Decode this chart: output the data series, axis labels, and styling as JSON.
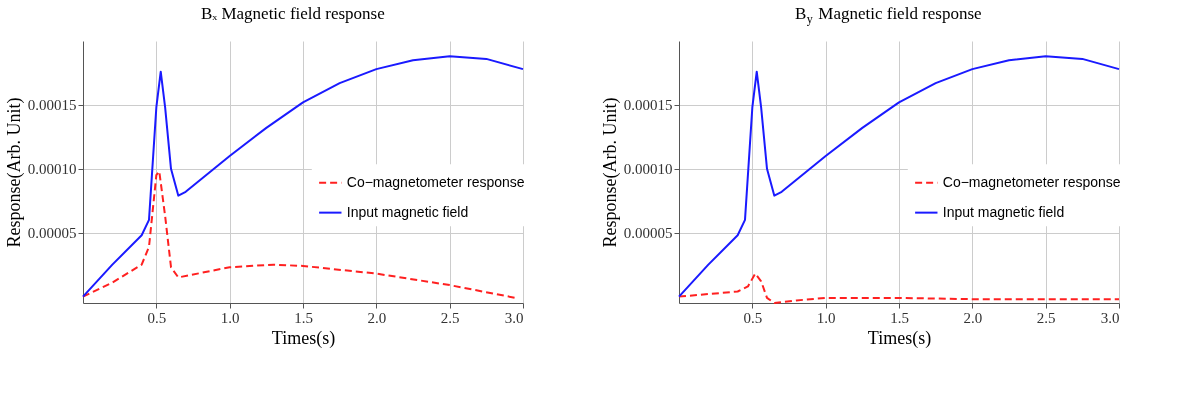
{
  "chart_data": [
    {
      "type": "line",
      "title": "Bₓ Magnetic field response",
      "xlabel": "Times(s)",
      "ylabel": "Response(Arb. Unit)",
      "xlim": [
        0,
        3.0
      ],
      "ylim": [
        -5e-06,
        0.0002
      ],
      "xticks": [
        0.5,
        {
          "value": 1,
          "label": "1.0"
        },
        1.5,
        {
          "value": 2,
          "label": "2.0"
        },
        2.5,
        {
          "value": 3,
          "label": "3.0"
        }
      ],
      "yticks": [
        {
          "value": 5e-05,
          "label": "0.00005"
        },
        {
          "value": 0.0001,
          "label": "0.00010"
        },
        {
          "value": 0.00015,
          "label": "0.00015"
        }
      ],
      "grid": true,
      "legend": "right",
      "series": [
        {
          "name": "Co−magnetometer response",
          "color": "#ff2020",
          "line_style": "dashed",
          "x": [
            0,
            0.2,
            0.4,
            0.45,
            0.5,
            0.52,
            0.56,
            0.6,
            0.65,
            1.0,
            1.3,
            1.5,
            2.0,
            2.5,
            2.95
          ],
          "values": [
            0,
            1.1e-05,
            2.5e-05,
            3.9e-05,
            9.5e-05,
            9.8e-05,
            6.3e-05,
            2.3e-05,
            1.5e-05,
            2.3e-05,
            2.5e-05,
            2.4e-05,
            1.8e-05,
            9e-06,
            -1e-06
          ]
        },
        {
          "name": "Input magnetic field",
          "color": "#1a1aff",
          "line_style": "solid",
          "x": [
            0,
            0.2,
            0.4,
            0.45,
            0.5,
            0.53,
            0.56,
            0.6,
            0.65,
            0.7,
            1.0,
            1.25,
            1.5,
            1.75,
            2.0,
            2.25,
            2.5,
            2.75,
            3.0
          ],
          "values": [
            0,
            2.5e-05,
            4.8e-05,
            6e-05,
            0.000148,
            0.000176,
            0.000148,
            0.0001,
            7.9e-05,
            8.2e-05,
            0.00011,
            0.000132,
            0.000152,
            0.000167,
            0.000178,
            0.000185,
            0.000188,
            0.000186,
            0.000178
          ]
        }
      ]
    },
    {
      "type": "line",
      "title": "B$_{y}$ Magnetic field response",
      "xlabel": "Times(s)",
      "ylabel": "Response(Arb. Unit)",
      "xlim": [
        0,
        3.0
      ],
      "ylim": [
        -5e-06,
        0.0002
      ],
      "xticks": [
        0.5,
        {
          "value": 1,
          "label": "1.0"
        },
        1.5,
        {
          "value": 2,
          "label": "2.0"
        },
        2.5,
        {
          "value": 3,
          "label": "3.0"
        }
      ],
      "yticks": [
        {
          "value": 5e-05,
          "label": "0.00005"
        },
        {
          "value": 0.0001,
          "label": "0.00010"
        },
        {
          "value": 0.00015,
          "label": "0.00015"
        }
      ],
      "grid": true,
      "legend": "right",
      "series": [
        {
          "name": "Co−magnetometer response",
          "color": "#ff2020",
          "line_style": "dashed",
          "x": [
            0,
            0.4,
            0.47,
            0.52,
            0.56,
            0.6,
            0.65,
            0.8,
            1.0,
            1.5,
            2.0,
            2.5,
            3.0
          ],
          "values": [
            0,
            4e-06,
            8e-06,
            1.8e-05,
            1.2e-05,
            -1e-06,
            -5e-06,
            -3e-06,
            -1e-06,
            -1e-06,
            -2e-06,
            -2e-06,
            -2e-06
          ]
        },
        {
          "name": "Input magnetic field",
          "color": "#1a1aff",
          "line_style": "solid",
          "x": [
            0,
            0.2,
            0.4,
            0.45,
            0.5,
            0.53,
            0.56,
            0.6,
            0.65,
            0.7,
            1.0,
            1.25,
            1.5,
            1.75,
            2.0,
            2.25,
            2.5,
            2.75,
            3.0
          ],
          "values": [
            0,
            2.5e-05,
            4.8e-05,
            6e-05,
            0.000148,
            0.000176,
            0.000148,
            0.0001,
            7.9e-05,
            8.2e-05,
            0.00011,
            0.000132,
            0.000152,
            0.000167,
            0.000178,
            0.000185,
            0.000188,
            0.000186,
            0.000178
          ]
        }
      ]
    }
  ]
}
